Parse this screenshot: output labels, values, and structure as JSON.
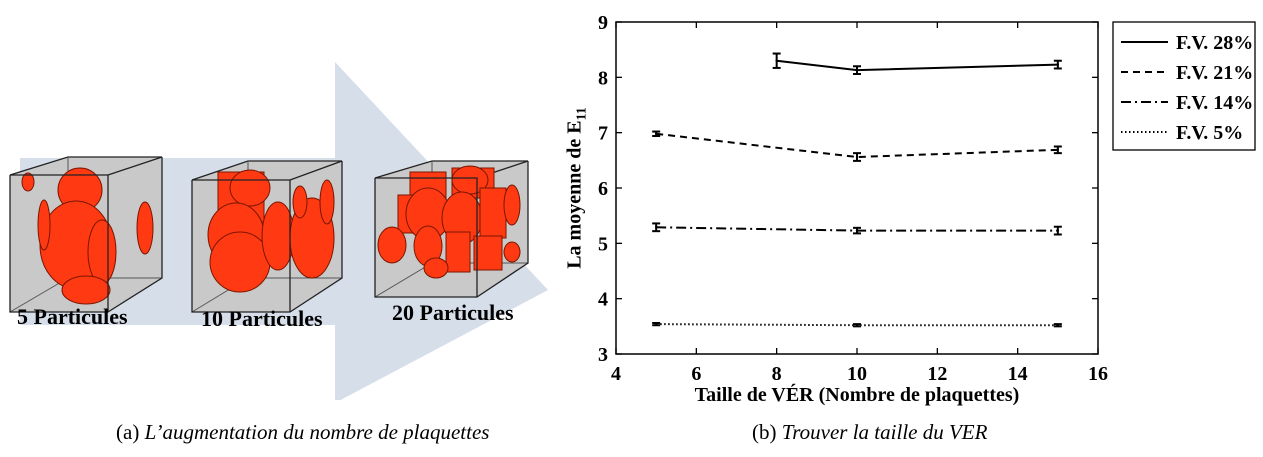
{
  "panel_a": {
    "labels": [
      "5 Particules",
      "10 Particules",
      "20 Particules"
    ],
    "caption_prefix": "(a)",
    "caption_text": "L’augmentation du nombre de plaquettes",
    "colors": {
      "arrow": "#cfd8e6",
      "cube_face": "#c9c9c9",
      "particle": "#ff3a12",
      "particle_edge": "#7a1500"
    }
  },
  "panel_b": {
    "caption_prefix": "(b)",
    "caption_text": "Trouver la taille du VER"
  },
  "chart_data": {
    "type": "line",
    "xlabel": "Taille de VÉR (Nombre de plaquettes)",
    "ylabel_main": "La moyenne de E",
    "ylabel_sub": "11",
    "xlim": [
      4,
      16
    ],
    "ylim": [
      3,
      9
    ],
    "xticks": [
      "4",
      "6",
      "8",
      "10",
      "12",
      "14",
      "16"
    ],
    "yticks": [
      "3",
      "4",
      "5",
      "6",
      "7",
      "8",
      "9"
    ],
    "grid": false,
    "legend_position": "outside-right-top",
    "series": [
      {
        "name": "F.V. 28%",
        "dash": "solid",
        "x": [
          8,
          10,
          15
        ],
        "y": [
          8.3,
          8.13,
          8.23
        ],
        "err": [
          0.13,
          0.07,
          0.07
        ]
      },
      {
        "name": "F.V. 21%",
        "dash": "dashed",
        "x": [
          5,
          10,
          15
        ],
        "y": [
          6.98,
          6.56,
          6.69
        ],
        "err": [
          0.04,
          0.07,
          0.06
        ]
      },
      {
        "name": "F.V. 14%",
        "dash": "dashdot",
        "x": [
          5,
          10,
          15
        ],
        "y": [
          5.29,
          5.23,
          5.23
        ],
        "err": [
          0.07,
          0.05,
          0.07
        ]
      },
      {
        "name": "F.V. 5%",
        "dash": "dotted",
        "x": [
          5,
          10,
          15
        ],
        "y": [
          3.54,
          3.52,
          3.52
        ],
        "err": [
          0.02,
          0.02,
          0.02
        ]
      }
    ]
  }
}
